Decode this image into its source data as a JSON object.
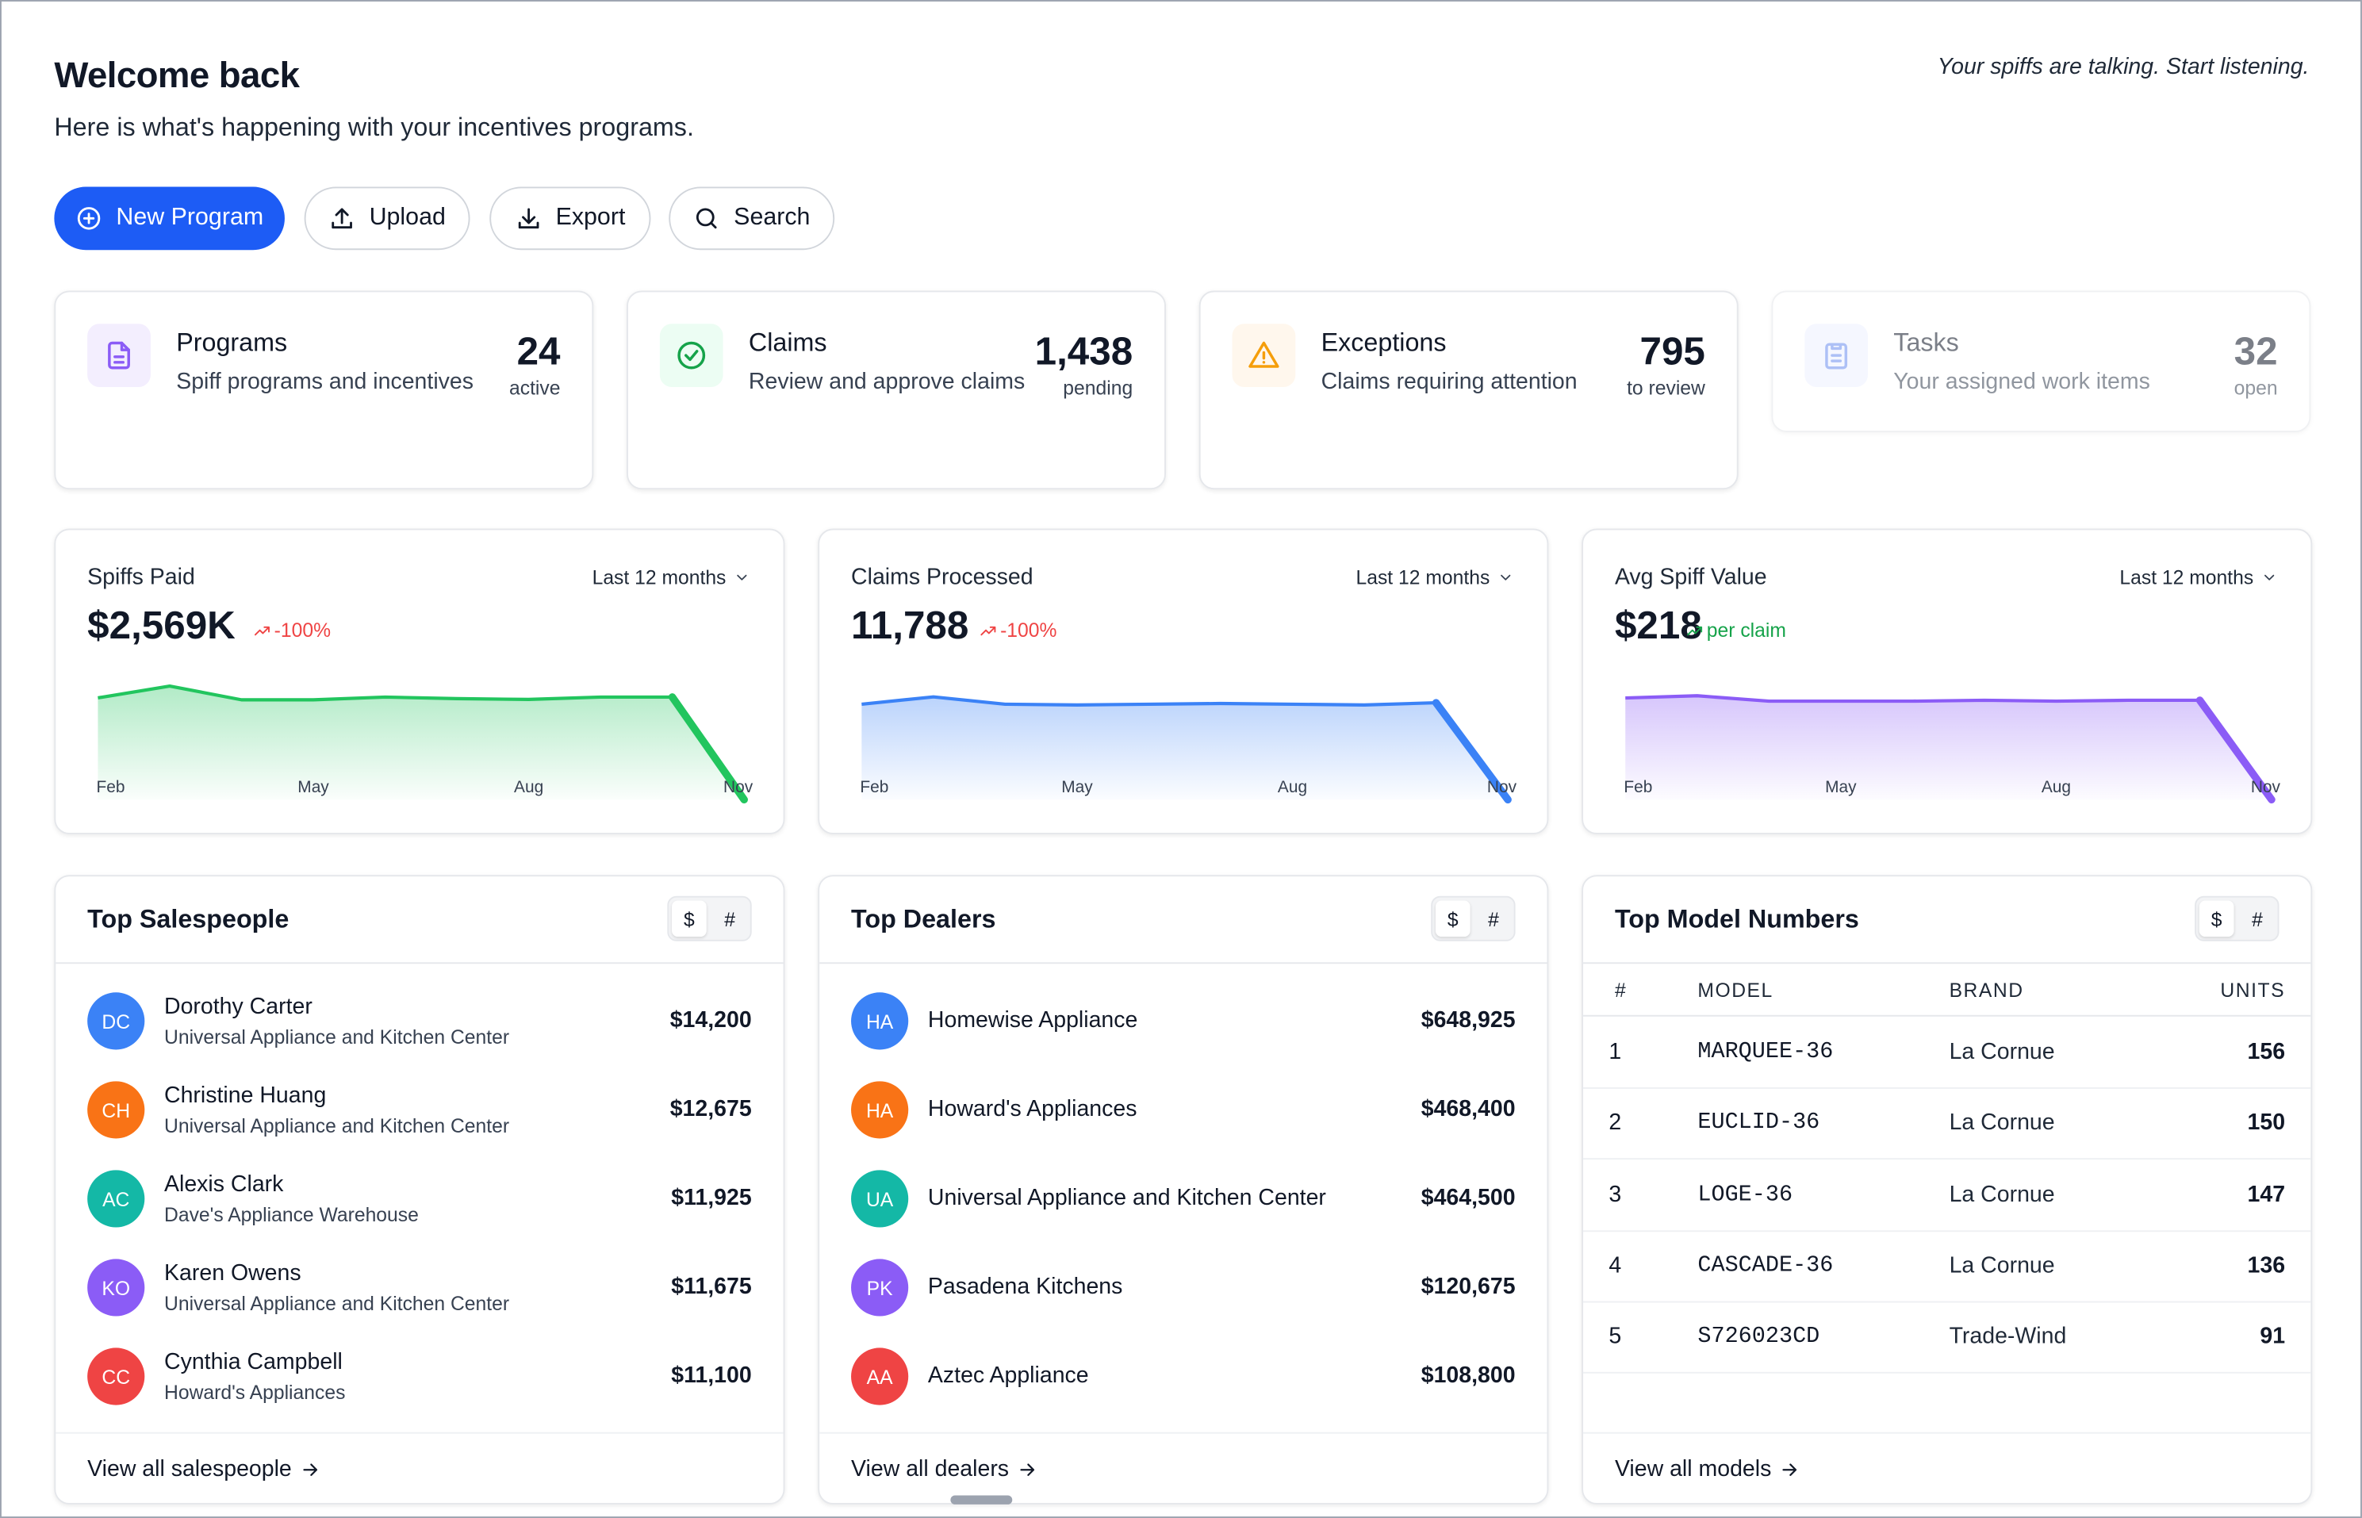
{
  "header": {
    "title": "Welcome back",
    "subtitle": "Here is what's happening with your incentives programs.",
    "tagline": "Your spiffs are talking. Start listening."
  },
  "actions": [
    "New Program",
    "Upload",
    "Export",
    "Search"
  ],
  "stats": [
    {
      "title": "Programs",
      "description": "Spiff programs and incentives",
      "value": "24",
      "unit": "active"
    },
    {
      "title": "Claims",
      "description": "Review and approve claims",
      "value": "1,438",
      "unit": "pending"
    },
    {
      "title": "Exceptions",
      "description": "Claims requiring attention",
      "value": "795",
      "unit": "to review"
    },
    {
      "title": "Tasks",
      "description": "Your assigned work items",
      "value": "32",
      "unit": "open"
    }
  ],
  "chart_data": [
    {
      "type": "line",
      "title": "Spiffs Paid",
      "period": "Last 12 months",
      "headline": "$2,569K",
      "change": "-100%",
      "trend": "down",
      "color": "#22c55e",
      "categories": [
        "Feb",
        null,
        null,
        "May",
        null,
        null,
        "Aug",
        null,
        null,
        "Nov"
      ],
      "values": [
        260,
        290,
        255,
        255,
        262,
        258,
        256,
        262,
        262,
        0
      ],
      "ylim": [
        0,
        300
      ]
    },
    {
      "type": "line",
      "title": "Claims Processed",
      "period": "Last 12 months",
      "headline": "11,788",
      "change": "-100%",
      "trend": "down",
      "color": "#3b82f6",
      "categories": [
        "Feb",
        null,
        null,
        "May",
        null,
        null,
        "Aug",
        null,
        null,
        "Nov"
      ],
      "values": [
        1300,
        1400,
        1300,
        1290,
        1300,
        1310,
        1300,
        1290,
        1320,
        0
      ],
      "ylim": [
        0,
        1600
      ]
    },
    {
      "type": "line",
      "title": "Avg Spiff Value",
      "period": "Last 12 months",
      "headline": "$218",
      "change": "per claim",
      "trend": "up",
      "color": "#8b5cf6",
      "categories": [
        "Feb",
        null,
        null,
        "May",
        null,
        null,
        "Aug",
        null,
        null,
        "Nov"
      ],
      "values": [
        225,
        230,
        218,
        218,
        218,
        220,
        218,
        220,
        220,
        0
      ],
      "ylim": [
        0,
        260
      ]
    }
  ],
  "salespeople": {
    "title": "Top Salespeople",
    "toggle": [
      "$",
      "#"
    ],
    "footer": "View all salespeople",
    "rows": [
      {
        "initials": "DC",
        "name": "Dorothy Carter",
        "company": "Universal Appliance and Kitchen Center",
        "amount": "$14,200"
      },
      {
        "initials": "CH",
        "name": "Christine Huang",
        "company": "Universal Appliance and Kitchen Center",
        "amount": "$12,675"
      },
      {
        "initials": "AC",
        "name": "Alexis Clark",
        "company": "Dave's Appliance Warehouse",
        "amount": "$11,925"
      },
      {
        "initials": "KO",
        "name": "Karen Owens",
        "company": "Universal Appliance and Kitchen Center",
        "amount": "$11,675"
      },
      {
        "initials": "CC",
        "name": "Cynthia Campbell",
        "company": "Howard's Appliances",
        "amount": "$11,100"
      }
    ]
  },
  "dealers": {
    "title": "Top Dealers",
    "toggle": [
      "$",
      "#"
    ],
    "footer": "View all dealers",
    "rows": [
      {
        "initials": "HA",
        "name": "Homewise Appliance",
        "amount": "$648,925"
      },
      {
        "initials": "HA",
        "name": "Howard's Appliances",
        "amount": "$468,400"
      },
      {
        "initials": "UA",
        "name": "Universal Appliance and Kitchen Center",
        "amount": "$464,500"
      },
      {
        "initials": "PK",
        "name": "Pasadena Kitchens",
        "amount": "$120,675"
      },
      {
        "initials": "AA",
        "name": "Aztec Appliance",
        "amount": "$108,800"
      }
    ]
  },
  "models": {
    "title": "Top Model Numbers",
    "toggle": [
      "$",
      "#"
    ],
    "footer": "View all models",
    "columns": [
      "#",
      "MODEL",
      "BRAND",
      "UNITS"
    ],
    "rows": [
      [
        "1",
        "MARQUEE-36",
        "La Cornue",
        "156"
      ],
      [
        "2",
        "EUCLID-36",
        "La Cornue",
        "150"
      ],
      [
        "3",
        "LOGE-36",
        "La Cornue",
        "147"
      ],
      [
        "4",
        "CASCADE-36",
        "La Cornue",
        "136"
      ],
      [
        "5",
        "S726023CD",
        "Trade-Wind",
        "91"
      ]
    ]
  }
}
